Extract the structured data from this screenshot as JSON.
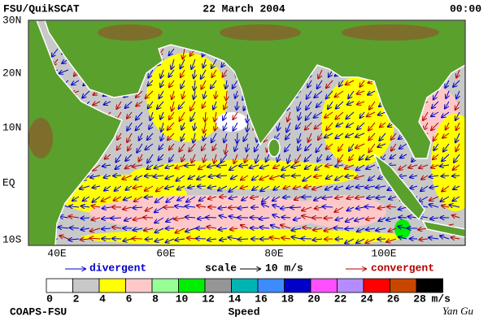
{
  "header": {
    "title": "FSU/QuikSCAT",
    "date": "22 March 2004",
    "time": "00:00"
  },
  "map": {
    "lat_labels": [
      "30N",
      "20N",
      "10N",
      "EQ",
      "10S"
    ],
    "lon_labels": [
      "40E",
      "60E",
      "80E",
      "100E"
    ]
  },
  "legend": {
    "divergent": "divergent",
    "scale": "scale",
    "scale_value": "10 m/s",
    "convergent": "convergent"
  },
  "colorbar": {
    "ticks": [
      0,
      2,
      4,
      6,
      8,
      10,
      12,
      14,
      16,
      18,
      20,
      22,
      24,
      26,
      28
    ],
    "unit": "m/s",
    "title": "Speed",
    "colors": [
      "#ffffff",
      "#c8c8c8",
      "#ffff00",
      "#ffc8c8",
      "#96ff96",
      "#00ee00",
      "#969696",
      "#00b4b4",
      "#3c8cff",
      "#0000c8",
      "#ff50ff",
      "#b48cff",
      "#ff0000",
      "#c84600",
      "#000000"
    ]
  },
  "footer": {
    "left": "COAPS-FSU",
    "right": "Yan Gu"
  }
}
